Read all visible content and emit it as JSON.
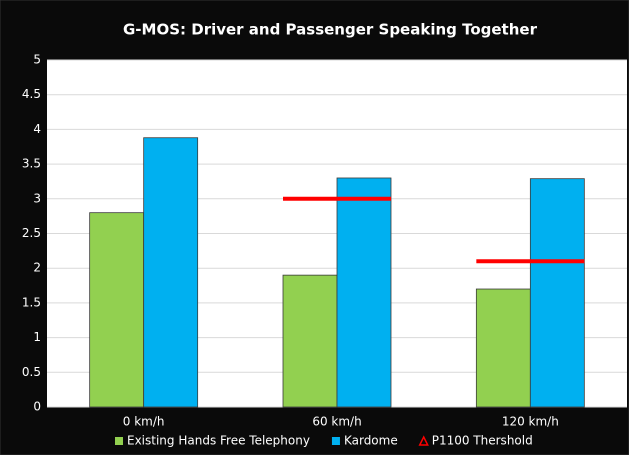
{
  "chart_data": {
    "type": "bar",
    "title": "G-MOS: Driver and Passenger Speaking Together",
    "categories": [
      "0 km/h",
      "60 km/h",
      "120 km/h"
    ],
    "series": [
      {
        "name": "Existing Hands Free Telephony",
        "color": "#92d050",
        "values": [
          2.8,
          1.9,
          1.7
        ]
      },
      {
        "name": "Kardome",
        "color": "#00b0f0",
        "values": [
          3.88,
          3.3,
          3.29
        ]
      },
      {
        "name": "P1100 Thershold",
        "color": "#ff0000",
        "values": [
          null,
          3.0,
          2.1
        ],
        "kind": "threshold"
      }
    ],
    "ylim": [
      0,
      5
    ],
    "yticks": [
      0,
      0.5,
      1,
      1.5,
      2,
      2.5,
      3,
      3.5,
      4,
      4.5,
      5
    ],
    "grid": true
  }
}
